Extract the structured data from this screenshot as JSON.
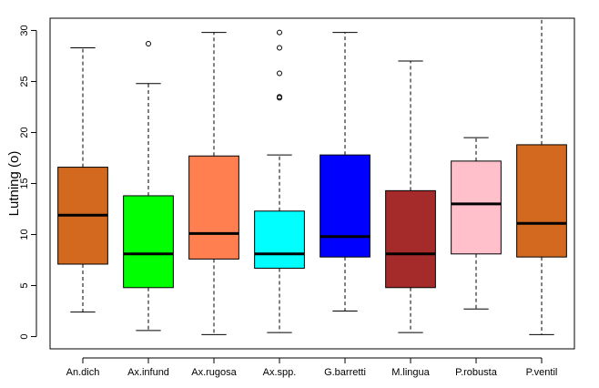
{
  "chart_data": {
    "type": "boxplot",
    "title": "",
    "xlabel": "",
    "ylabel": "Lutning (o)",
    "ylim": [
      -1.2,
      31.2
    ],
    "yticks": [
      0,
      5,
      10,
      15,
      20,
      25,
      30
    ],
    "grid": false,
    "legend": "none",
    "categories": [
      "An.dich",
      "Ax.infund",
      "Ax.rugosa",
      "Ax.spp.",
      "G.barretti",
      "M.lingua",
      "P.robusta",
      "P.ventil"
    ],
    "colors": [
      "#D2691E",
      "#00FF00",
      "#FF7F50",
      "#00FFFF",
      "#0000FF",
      "#A52A2A",
      "#FFC0CB",
      "#D2691E"
    ],
    "boxes": [
      {
        "min": 2.4,
        "q1": 7.1,
        "median": 11.9,
        "q3": 16.6,
        "max": 28.3,
        "outliers": []
      },
      {
        "min": 0.6,
        "q1": 4.8,
        "median": 8.1,
        "q3": 13.8,
        "max": 24.8,
        "outliers": [
          28.7
        ]
      },
      {
        "min": 0.2,
        "q1": 7.6,
        "median": 10.1,
        "q3": 17.7,
        "max": 29.8,
        "outliers": []
      },
      {
        "min": 0.4,
        "q1": 6.7,
        "median": 8.1,
        "q3": 12.3,
        "max": 17.8,
        "outliers": [
          23.4,
          23.5,
          25.8,
          28.3,
          29.8
        ]
      },
      {
        "min": 2.5,
        "q1": 7.8,
        "median": 9.8,
        "q3": 17.8,
        "max": 29.8,
        "outliers": []
      },
      {
        "min": 0.4,
        "q1": 4.8,
        "median": 8.1,
        "q3": 14.3,
        "max": 27.0,
        "outliers": []
      },
      {
        "min": 2.7,
        "q1": 8.1,
        "median": 13.0,
        "q3": 17.2,
        "max": 19.5,
        "outliers": []
      },
      {
        "min": 0.2,
        "q1": 7.8,
        "median": 11.1,
        "q3": 18.8,
        "max": 31.2,
        "outliers": []
      }
    ]
  }
}
